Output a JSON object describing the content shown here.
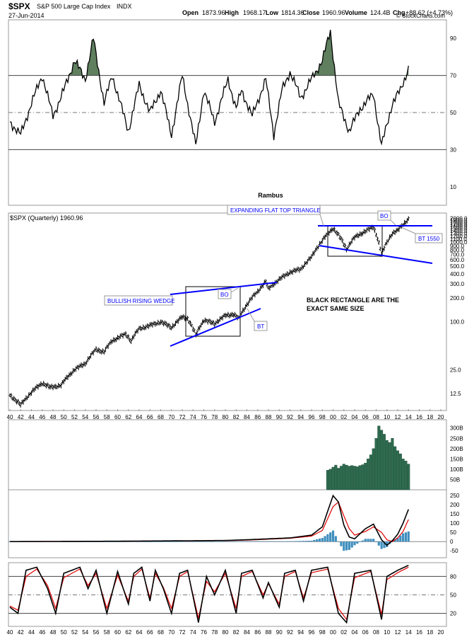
{
  "header": {
    "symbol": "$SPX",
    "name": "S&P 500 Large Cap Index",
    "exchange": "INDX",
    "date": "27-Jun-2014",
    "open_label": "Open",
    "open": "1873.96",
    "high_label": "High",
    "high": "1968.17",
    "low_label": "Low",
    "low": "1814.36",
    "close_label": "Close",
    "close": "1960.96",
    "volume_label": "Volume",
    "volume": "124.4B",
    "chg_label": "Chg",
    "chg": "+88.62 (+4.73%)",
    "watermark": "© StockCharts.com"
  },
  "colors": {
    "price": "#000000",
    "annotation": "#0000ff",
    "volume": "#2e6b4f",
    "rsi_fill": "#5f7f5f",
    "ma_red": "#e00000",
    "histogram": "#3f8fbf",
    "box": "#000000"
  },
  "chart_data": [
    {
      "type": "line",
      "panel": "rsi",
      "ylim": [
        0,
        100
      ],
      "y_ticks": [
        "10",
        "30",
        "50",
        "70",
        "90"
      ],
      "reference_lines": [
        30,
        50,
        70
      ],
      "x": [
        1940.0,
        1942.0,
        1944.0,
        1946.0,
        1948.0,
        1950.0,
        1952.0,
        1954.0,
        1955.5,
        1957.5,
        1959.0,
        1962.0,
        1964.0,
        1966.0,
        1968.0,
        1970.0,
        1972.0,
        1974.5,
        1976.0,
        1978.0,
        1980.5,
        1982.0,
        1983.0,
        1985.0,
        1987.5,
        1989.0,
        1990.5,
        1992.0,
        1994.0,
        1996.0,
        1998.0,
        1999.5,
        2001.0,
        2003.0,
        2005.0,
        2007.5,
        2009.0,
        2011.0,
        2012.5,
        2014.0
      ],
      "values": [
        45,
        38,
        55,
        70,
        48,
        62,
        78,
        68,
        90,
        55,
        70,
        40,
        65,
        50,
        62,
        38,
        70,
        32,
        62,
        45,
        68,
        52,
        62,
        48,
        68,
        38,
        62,
        72,
        58,
        68,
        78,
        94,
        55,
        40,
        52,
        60,
        32,
        55,
        62,
        74
      ]
    },
    {
      "type": "line",
      "panel": "price",
      "title": "Rambus",
      "legend": "$SPX (Quarterly) 1960.96",
      "y_scale": "log",
      "ylim": [
        8,
        2100
      ],
      "y_ticks": [
        "12.5",
        "25.0",
        "100.0",
        "200.0",
        "300.0",
        "400.0",
        "500.0",
        "600.0",
        "700.0",
        "800.0",
        "900.0",
        "1000.0",
        "1100.0",
        "1200.0",
        "1300.0",
        "1400.0",
        "1500.0",
        "1600.0",
        "1700.0",
        "1800.0",
        "1900.0",
        "2000.0"
      ],
      "x_ticks": [
        "40",
        "42",
        "44",
        "46",
        "48",
        "50",
        "52",
        "54",
        "56",
        "58",
        "60",
        "62",
        "64",
        "66",
        "68",
        "70",
        "72",
        "74",
        "76",
        "78",
        "80",
        "82",
        "84",
        "86",
        "88",
        "90",
        "92",
        "94",
        "96",
        "98",
        "00",
        "02",
        "04",
        "06",
        "08",
        "10",
        "12",
        "14",
        "16",
        "18",
        "20"
      ],
      "x": [
        1940.0,
        1942.0,
        1944.0,
        1946.0,
        1947.5,
        1949.5,
        1952.0,
        1954.0,
        1956.0,
        1957.5,
        1959.0,
        1961.5,
        1962.5,
        1964.0,
        1966.0,
        1968.0,
        1970.0,
        1972.0,
        1973.0,
        1974.5,
        1976.0,
        1978.0,
        1980.0,
        1981.5,
        1982.5,
        1984.0,
        1986.0,
        1987.5,
        1988.0,
        1990.0,
        1992.0,
        1994.0,
        1996.0,
        1998.0,
        2000.0,
        2002.5,
        2004.0,
        2007.5,
        2009.0,
        2011.0,
        2012.0,
        2014.0
      ],
      "values": [
        12,
        9,
        13,
        17,
        15,
        16,
        25,
        30,
        45,
        42,
        58,
        70,
        58,
        82,
        90,
        100,
        85,
        115,
        110,
        68,
        105,
        95,
        120,
        125,
        110,
        165,
        240,
        320,
        260,
        340,
        420,
        460,
        650,
        1050,
        1500,
        820,
        1150,
        1550,
        700,
        1300,
        1400,
        1960
      ],
      "annotations": [
        {
          "text": "EXPANDING FLAT TOP TRIANGLE"
        },
        {
          "text": "BO"
        },
        {
          "text": "BT 1550"
        },
        {
          "text": "BULLISH RISING WEDGE"
        },
        {
          "text": "BO"
        },
        {
          "text": "BT"
        },
        {
          "text": "BLACK RECTANGLE ARE THE EXACT SAME SIZE"
        }
      ]
    },
    {
      "type": "bar",
      "panel": "volume",
      "y_ticks": [
        "50B",
        "100B",
        "150B",
        "200B",
        "250B",
        "300B"
      ],
      "ylim": [
        0,
        330
      ],
      "x": [
        1999.0,
        1999.5,
        2000.0,
        2000.5,
        2001.0,
        2001.5,
        2002.0,
        2002.5,
        2003.0,
        2003.5,
        2004.0,
        2004.5,
        2005.0,
        2005.5,
        2006.0,
        2006.5,
        2007.0,
        2007.5,
        2008.0,
        2008.5,
        2009.0,
        2009.5,
        2010.0,
        2010.5,
        2011.0,
        2011.5,
        2012.0,
        2012.5,
        2013.0,
        2013.5,
        2014.0
      ],
      "values": [
        95,
        100,
        110,
        120,
        105,
        115,
        125,
        120,
        115,
        118,
        115,
        112,
        118,
        122,
        130,
        150,
        170,
        200,
        250,
        310,
        290,
        270,
        240,
        230,
        250,
        210,
        190,
        175,
        150,
        140,
        125
      ]
    },
    {
      "type": "line",
      "panel": "macd",
      "y_ticks": [
        "-50",
        "0",
        "50",
        "100",
        "150",
        "200",
        "250"
      ],
      "ylim": [
        -80,
        270
      ],
      "x": [
        1940,
        1950,
        1960,
        1970,
        1980,
        1984,
        1988,
        1992,
        1996,
        1998,
        2000,
        2001,
        2002,
        2003,
        2004,
        2006,
        2007.5,
        2009,
        2010,
        2011,
        2012,
        2013,
        2014
      ],
      "series": [
        {
          "values": [
            0,
            1,
            2,
            4,
            6,
            10,
            15,
            20,
            35,
            80,
            250,
            215,
            90,
            25,
            15,
            70,
            95,
            10,
            -20,
            5,
            40,
            100,
            175
          ]
        },
        {
          "values": [
            0,
            1,
            2,
            4,
            5,
            8,
            13,
            18,
            30,
            60,
            190,
            215,
            140,
            70,
            35,
            55,
            80,
            50,
            10,
            0,
            20,
            55,
            120
          ]
        }
      ],
      "histogram": [
        0,
        0,
        0,
        0,
        1,
        2,
        2,
        2,
        5,
        20,
        60,
        0,
        -50,
        -45,
        -20,
        15,
        15,
        -40,
        -30,
        5,
        20,
        45,
        55
      ]
    },
    {
      "type": "line",
      "panel": "stochastic",
      "y_ticks": [
        "20",
        "50",
        "80"
      ],
      "ylim": [
        0,
        100
      ],
      "reference_lines": [
        20,
        50,
        80
      ],
      "x": [
        1940,
        1941.5,
        1943,
        1945,
        1947,
        1948.5,
        1950,
        1953,
        1954.5,
        1956,
        1958,
        1960,
        1962,
        1963,
        1964.5,
        1966,
        1967,
        1968.5,
        1970,
        1971.5,
        1973,
        1975,
        1976.5,
        1978,
        1980,
        1982,
        1983,
        1985,
        1987,
        1988,
        1990,
        1991,
        1993,
        1994.5,
        1996,
        1999,
        2001,
        2002.5,
        2004,
        2007,
        2009,
        2010,
        2012,
        2014
      ],
      "series": [
        {
          "values": [
            30,
            20,
            90,
            95,
            60,
            20,
            85,
            95,
            60,
            90,
            20,
            88,
            35,
            85,
            95,
            40,
            90,
            60,
            20,
            85,
            90,
            5,
            80,
            50,
            90,
            20,
            85,
            90,
            45,
            70,
            30,
            85,
            90,
            40,
            90,
            95,
            20,
            5,
            85,
            90,
            10,
            80,
            90,
            98
          ]
        },
        {
          "values": [
            32,
            25,
            80,
            92,
            65,
            28,
            78,
            92,
            65,
            85,
            28,
            82,
            40,
            80,
            92,
            45,
            85,
            62,
            28,
            80,
            88,
            12,
            72,
            55,
            85,
            28,
            80,
            88,
            50,
            68,
            35,
            80,
            88,
            45,
            86,
            92,
            28,
            10,
            78,
            88,
            18,
            75,
            86,
            95
          ]
        }
      ]
    }
  ]
}
